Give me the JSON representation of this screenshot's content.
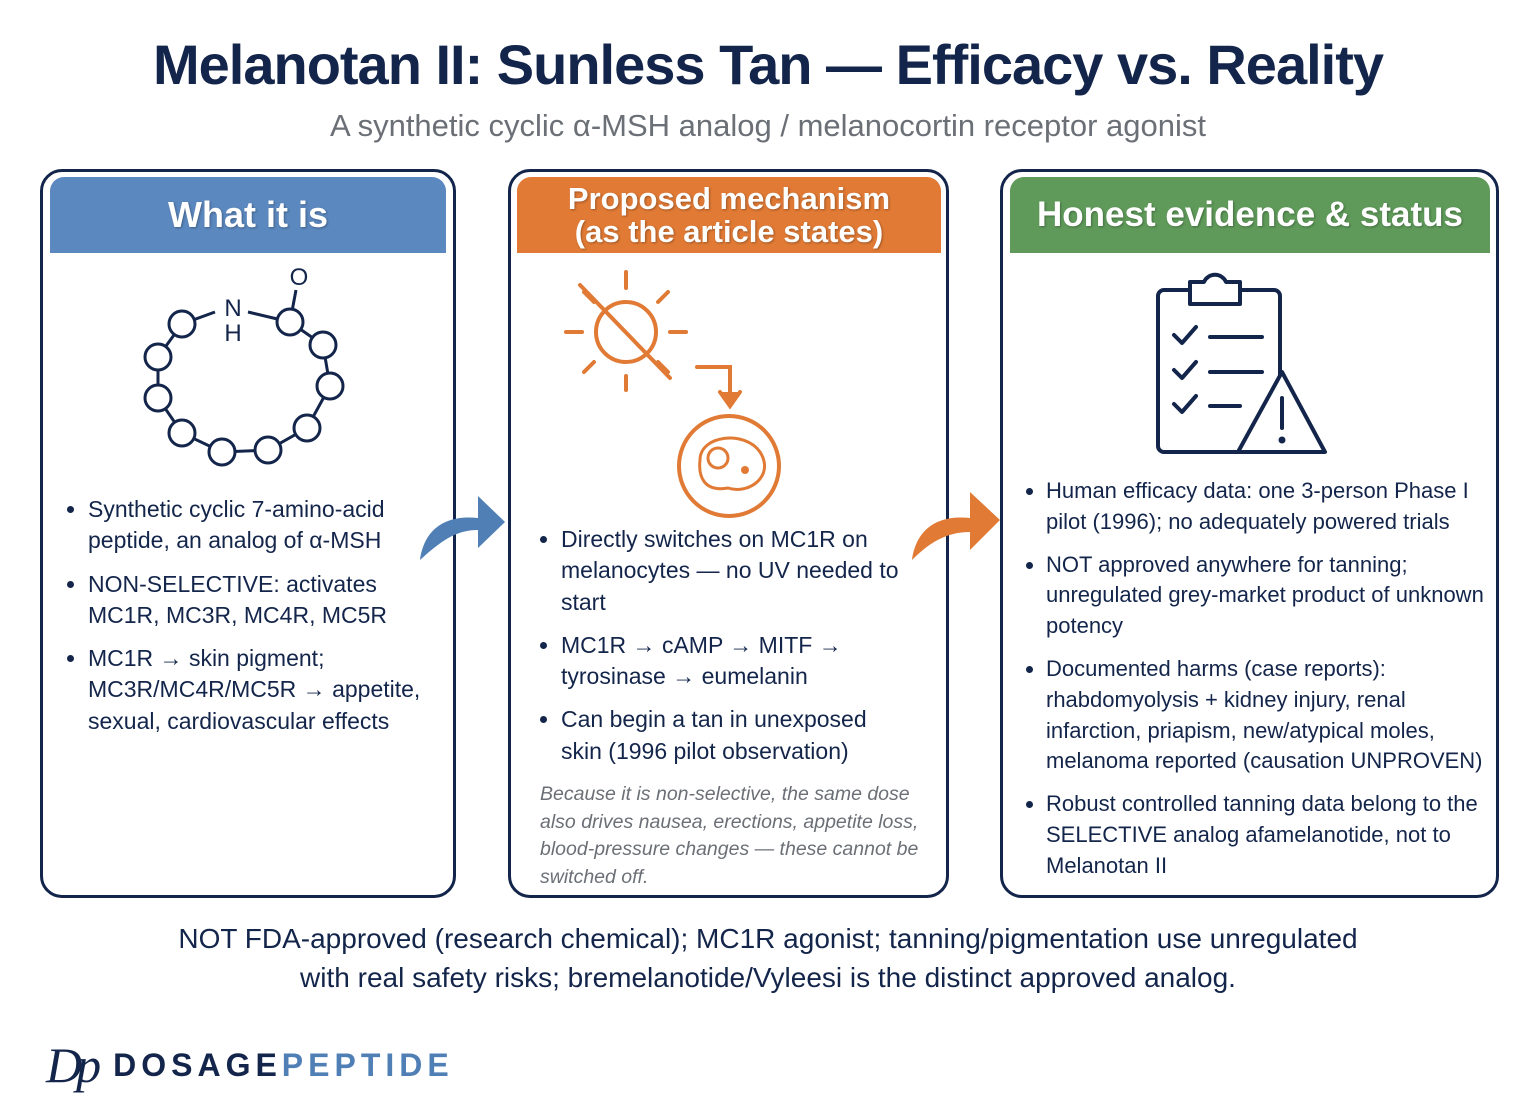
{
  "header": {
    "title": "Melanotan II: Sunless Tan — Efficacy vs. Reality",
    "subtitle": "A synthetic cyclic α-MSH analog / melanocortin receptor agonist"
  },
  "molecule": {
    "n": "N",
    "h": "H",
    "o": "O"
  },
  "panels": [
    {
      "header": [
        "What it is"
      ],
      "bullets": [
        "Synthetic cyclic 7-amino-acid peptide, an analog of α-MSH",
        "NON-SELECTIVE: activates MC1R, MC3R, MC4R, MC5R",
        "MC1R → skin pigment; MC3R/MC4R/MC5R → appetite, sexual, cardiovascular effects"
      ]
    },
    {
      "header": [
        "Proposed mechanism",
        "(as the article states)"
      ],
      "bullets": [
        "Directly switches on MC1R on melanocytes — no UV needed to start",
        "MC1R → cAMP → MITF → tyrosinase → eumelanin",
        "Can begin a tan in unexposed skin (1996 pilot observation)"
      ],
      "note": "Because it is non-selective, the same dose also drives nausea, erections, appetite loss, blood-pressure changes — these cannot be switched off."
    },
    {
      "header": [
        "Honest evidence & status"
      ],
      "bullets": [
        "Human efficacy data: one 3-person Phase I pilot (1996); no adequately powered trials",
        "NOT approved anywhere for tanning; unregulated grey-market product of unknown potency",
        "Documented harms (case reports): rhabdomyolysis + kidney injury, renal infarction, priapism, new/atypical moles, melanoma reported (causation UNPROVEN)",
        "Robust controlled tanning data belong to the SELECTIVE analog afamelanotide, not to Melanotan II"
      ]
    }
  ],
  "footer": [
    "NOT FDA-approved (research chemical); MC1R agonist; tanning/pigmentation use unregulated",
    "with real safety risks; bremelanotide/Vyleesi is the distinct approved analog."
  ],
  "logo": {
    "mark": "Dp",
    "word1": "DOSAGE",
    "word2": "PEPTIDE"
  }
}
